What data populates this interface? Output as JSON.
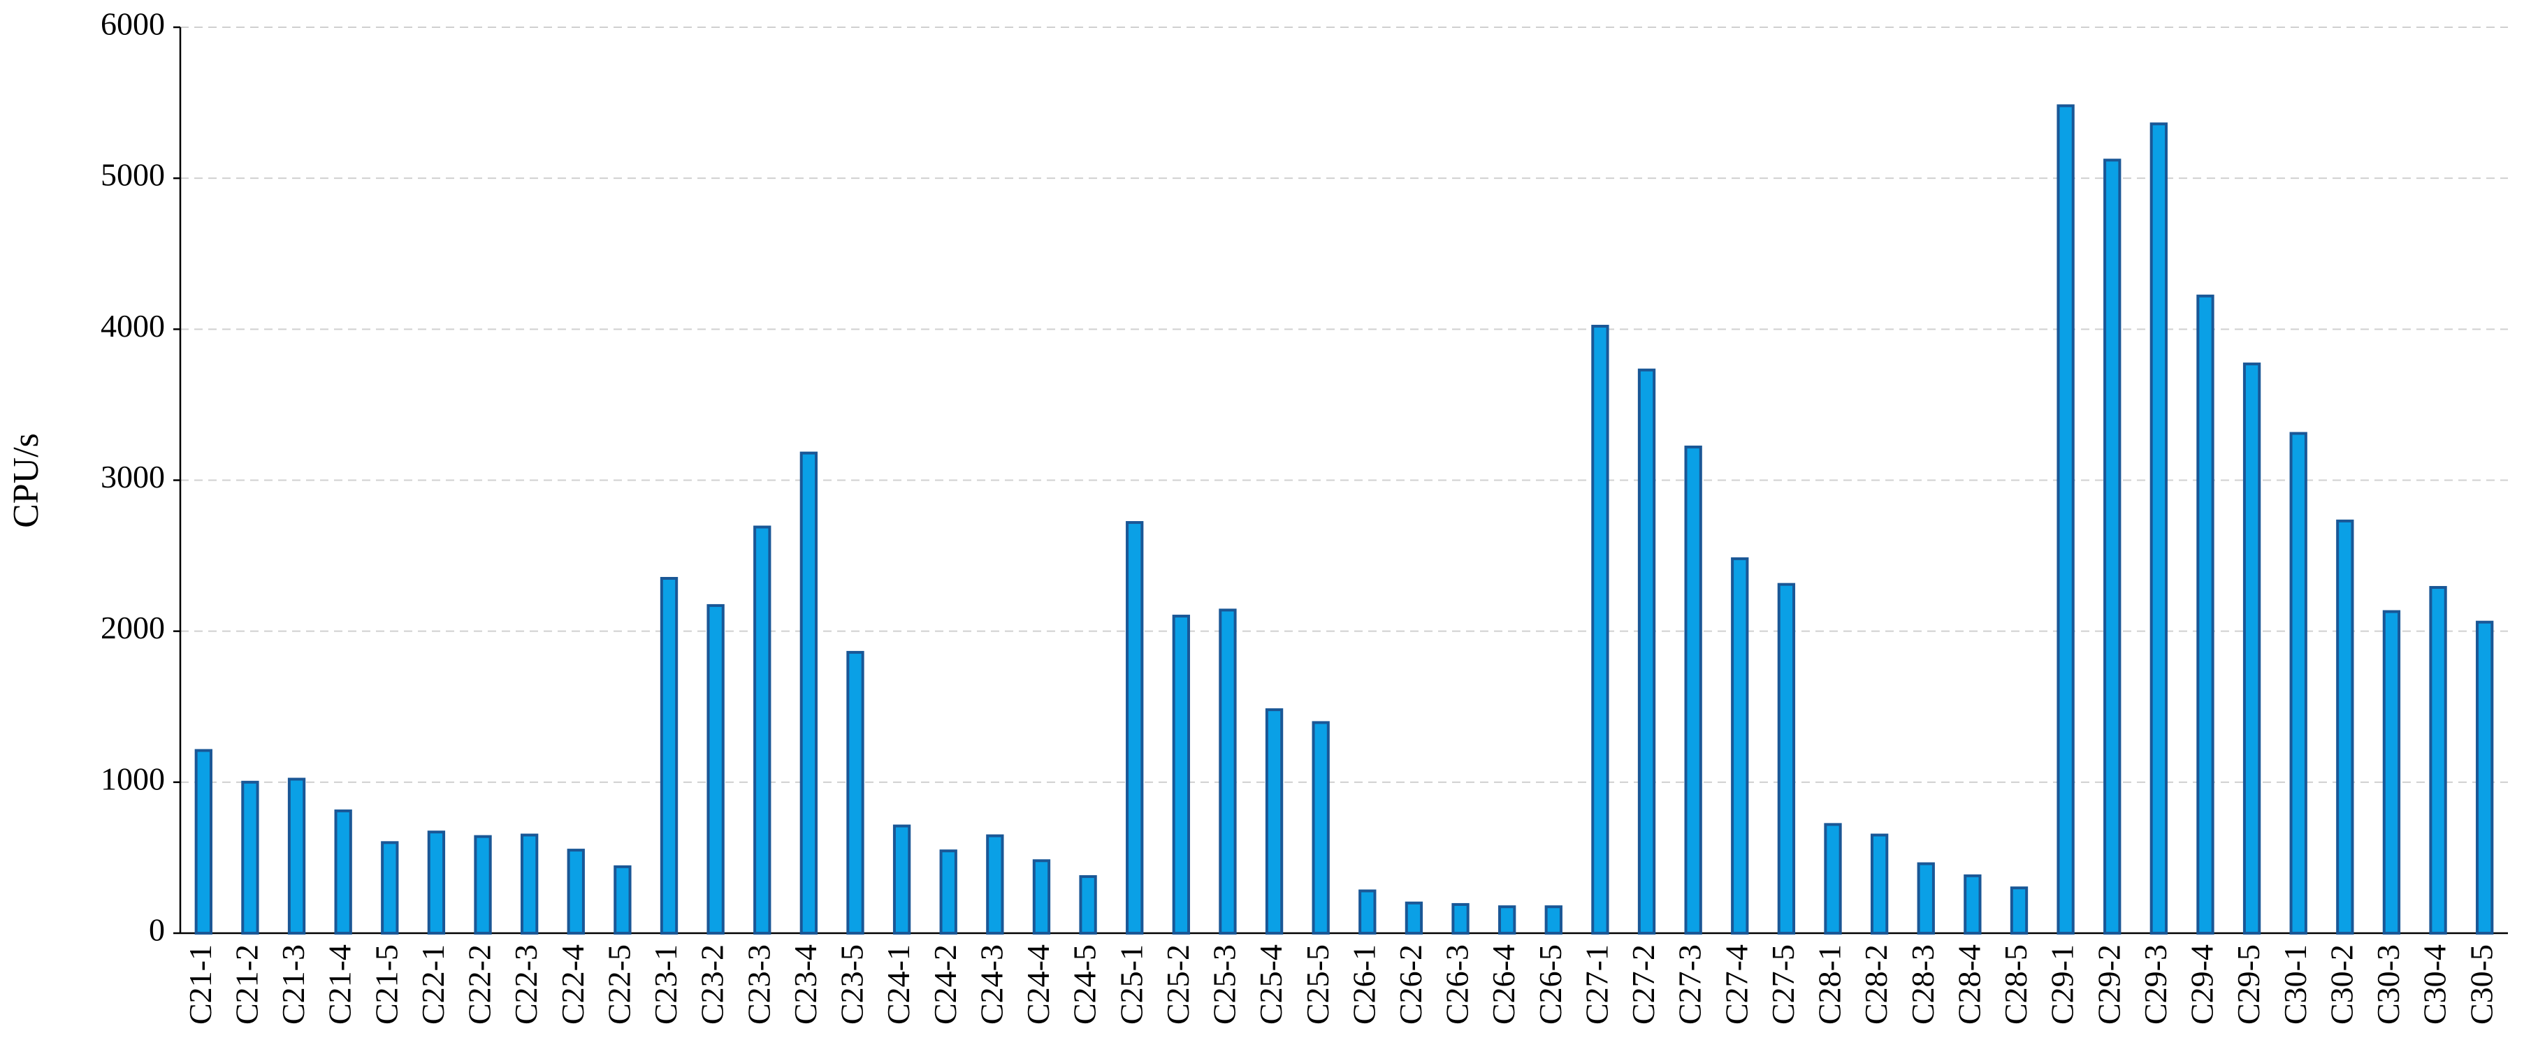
{
  "chart_data": {
    "type": "bar",
    "ylabel": "CPU/s",
    "categories": [
      "C21-1",
      "C21-2",
      "C21-3",
      "C21-4",
      "C21-5",
      "C22-1",
      "C22-2",
      "C22-3",
      "C22-4",
      "C22-5",
      "C23-1",
      "C23-2",
      "C23-3",
      "C23-4",
      "C23-5",
      "C24-1",
      "C24-2",
      "C24-3",
      "C24-4",
      "C24-5",
      "C25-1",
      "C25-2",
      "C25-3",
      "C25-4",
      "C25-5",
      "C26-1",
      "C26-2",
      "C26-3",
      "C26-4",
      "C26-5",
      "C27-1",
      "C27-2",
      "C27-3",
      "C27-4",
      "C27-5",
      "C28-1",
      "C28-2",
      "C28-3",
      "C28-4",
      "C28-5",
      "C29-1",
      "C29-2",
      "C29-3",
      "C29-4",
      "C29-5",
      "C30-1",
      "C30-2",
      "C30-3",
      "C30-4",
      "C30-5"
    ],
    "values": [
      1210,
      1000,
      1020,
      810,
      600,
      670,
      640,
      650,
      550,
      440,
      2350,
      2170,
      2690,
      3180,
      1860,
      710,
      545,
      645,
      480,
      375,
      2720,
      2100,
      2140,
      1480,
      1395,
      280,
      200,
      190,
      175,
      175,
      4020,
      3730,
      3220,
      2480,
      2310,
      720,
      650,
      460,
      380,
      300,
      5480,
      5120,
      5360,
      4220,
      3770,
      3310,
      2730,
      2130,
      2290,
      2060
    ],
    "color": "#0aa0e6",
    "ylim": [
      0,
      6000
    ],
    "yticks": [
      0,
      1000,
      2000,
      3000,
      4000,
      5000,
      6000
    ],
    "grid": true
  }
}
